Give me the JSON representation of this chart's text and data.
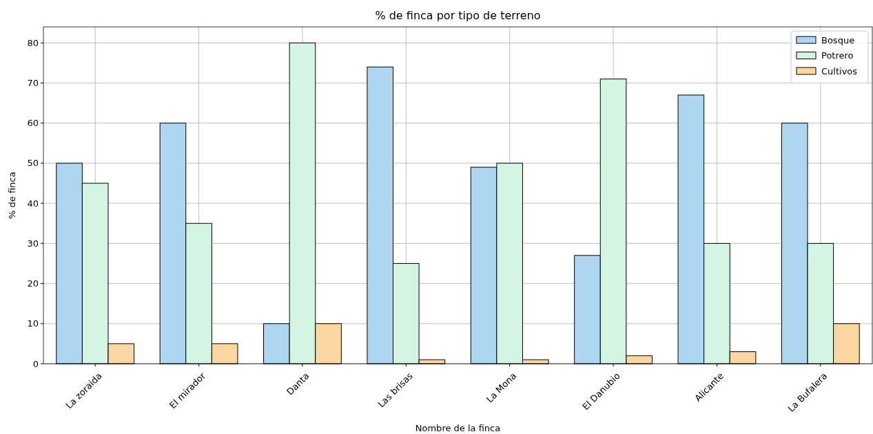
{
  "chart_data": {
    "type": "bar",
    "title": "% de finca por tipo de terreno",
    "xlabel": "Nombre de la finca",
    "ylabel": "% de finca",
    "categories": [
      "La zoraida",
      "El mirador",
      "Danta",
      "Las brisas",
      "La Mona",
      "El Danubio",
      "Alicante",
      "La Bufalera"
    ],
    "series": [
      {
        "name": "Bosque",
        "color": "#aed6f1",
        "values": [
          50,
          60,
          10,
          74,
          49,
          27,
          67,
          60
        ]
      },
      {
        "name": "Potrero",
        "color": "#d5f5e3",
        "values": [
          45,
          35,
          80,
          25,
          50,
          71,
          30,
          30
        ]
      },
      {
        "name": "Cultivos",
        "color": "#fad7a0",
        "values": [
          5,
          5,
          10,
          1,
          1,
          2,
          3,
          10
        ]
      }
    ],
    "ylim": [
      0,
      84
    ],
    "yticks": [
      0,
      10,
      20,
      30,
      40,
      50,
      60,
      70,
      80
    ],
    "grid": true,
    "legend": "top right"
  }
}
